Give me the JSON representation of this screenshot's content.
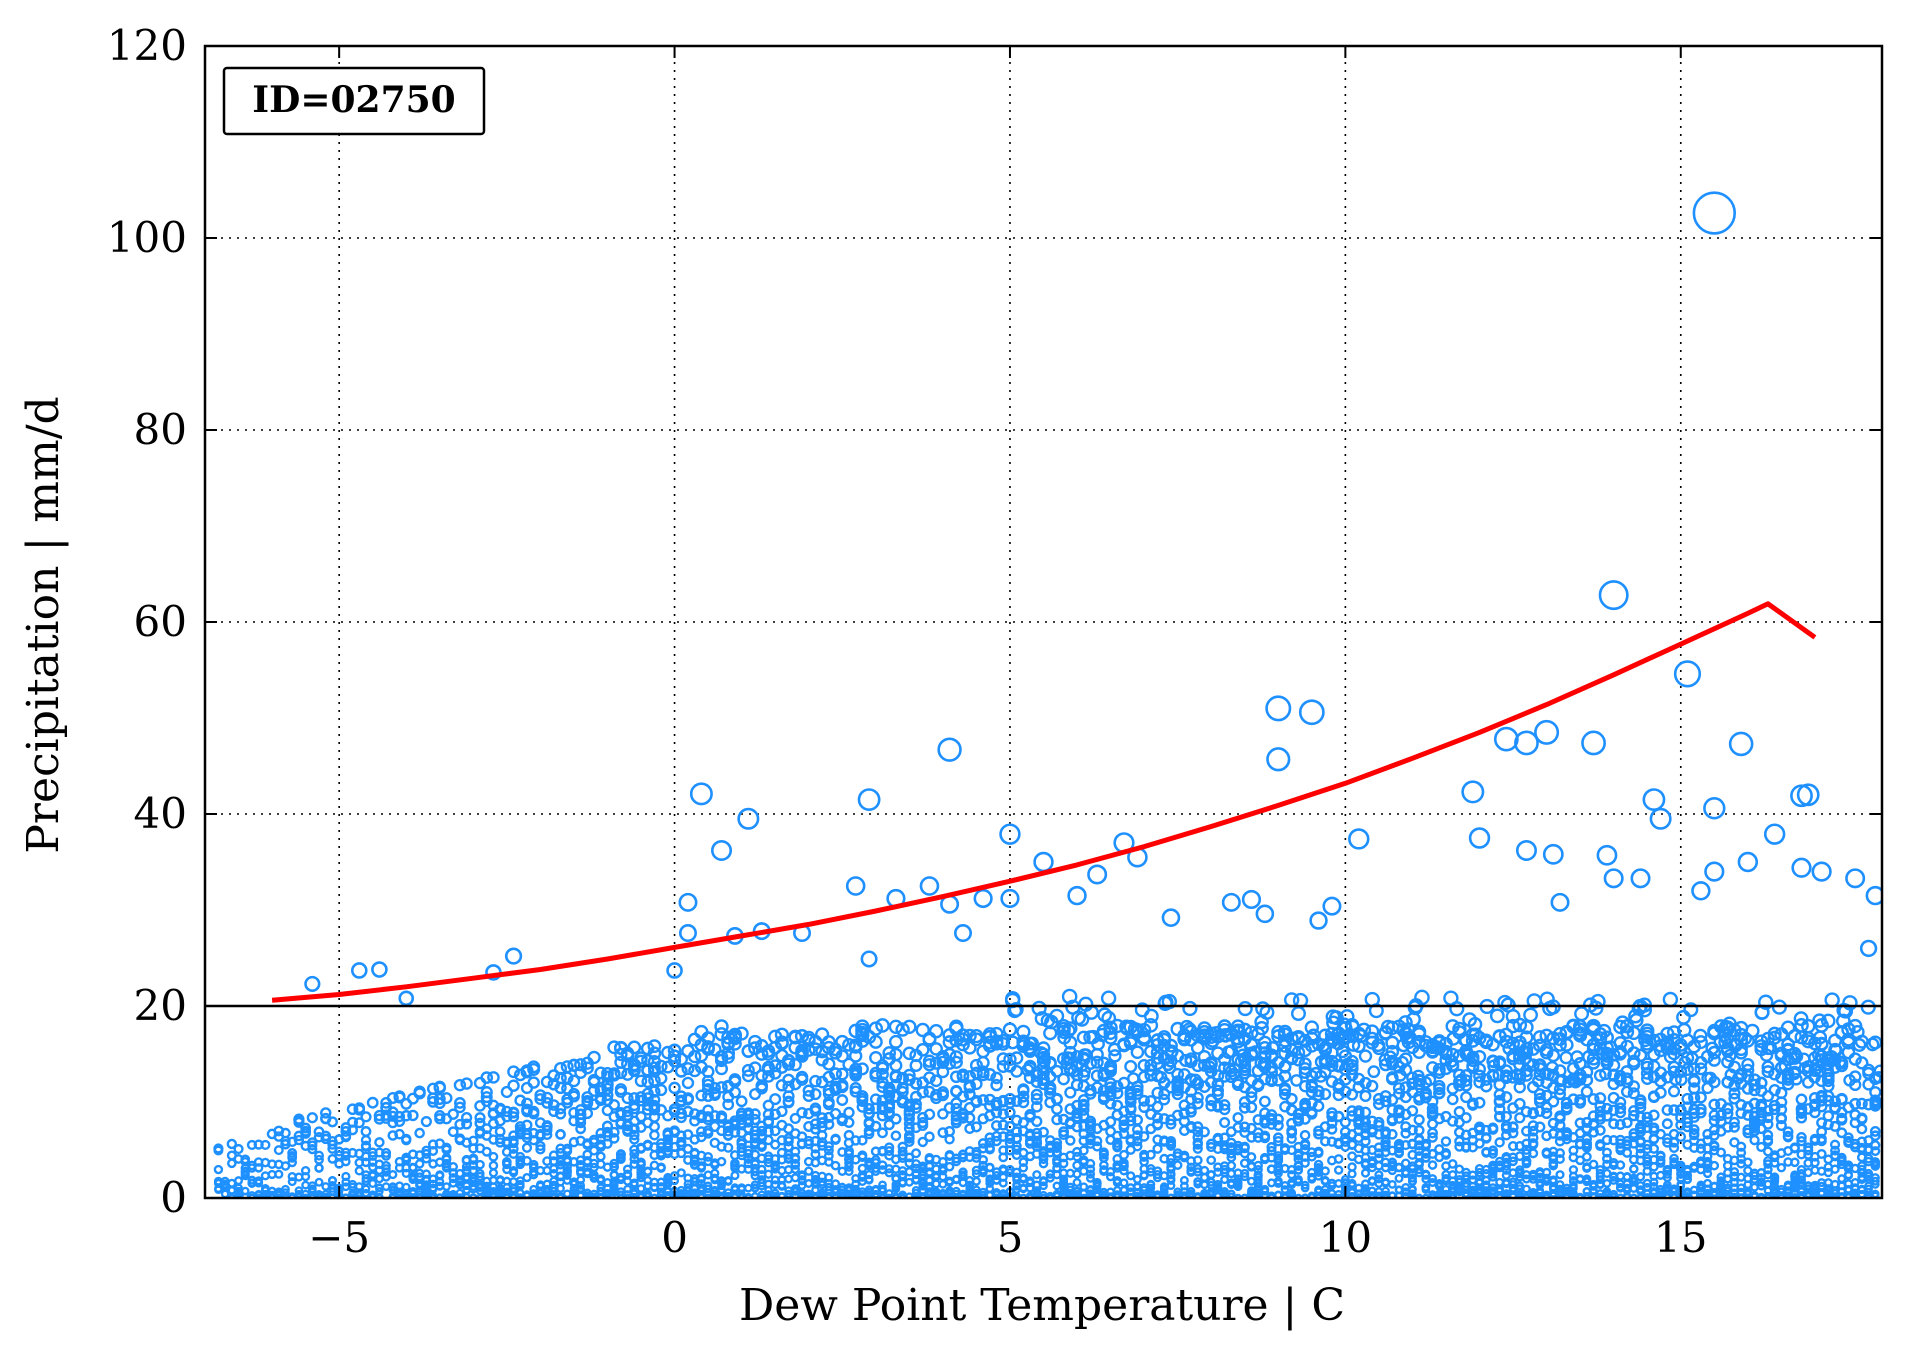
{
  "chart_data": {
    "type": "scatter",
    "title": "",
    "xlabel": "Dew Point Temperature | C",
    "ylabel": "Precipitation | mm/d",
    "xlim": [
      -7,
      18
    ],
    "ylim": [
      0,
      120
    ],
    "x_ticks": [
      -5,
      0,
      5,
      10,
      15
    ],
    "x_tick_labels": [
      "−5",
      "0",
      "5",
      "10",
      "15"
    ],
    "y_ticks": [
      0,
      20,
      40,
      60,
      80,
      100,
      120
    ],
    "y_tick_labels": [
      "0",
      "20",
      "40",
      "60",
      "80",
      "100",
      "120"
    ],
    "grid": true,
    "grid_style": "dotted",
    "annotation": "ID=02750",
    "annotation_placement": "top-left",
    "threshold_line": {
      "y": 20,
      "color": "#000000"
    },
    "marker_color": "#1e90ff",
    "curve_color": "#ff0000",
    "series": [
      {
        "kind": "scatter",
        "marker": "open-circle",
        "note_visible_points": "Only the distinct high-value points are listed; a dense band of thousands of points fills 0-20 mm/d across the x range.",
        "points": [
          [
            -5.4,
            22.3
          ],
          [
            -4.7,
            23.7
          ],
          [
            -4.4,
            23.8
          ],
          [
            -4.0,
            20.8
          ],
          [
            -2.7,
            23.5
          ],
          [
            -2.4,
            25.2
          ],
          [
            0.0,
            23.7
          ],
          [
            0.2,
            30.8
          ],
          [
            0.2,
            27.6
          ],
          [
            0.4,
            42.1
          ],
          [
            0.7,
            36.2
          ],
          [
            1.1,
            39.5
          ],
          [
            0.9,
            27.3
          ],
          [
            1.3,
            27.8
          ],
          [
            1.9,
            27.6
          ],
          [
            2.7,
            32.5
          ],
          [
            2.9,
            41.5
          ],
          [
            2.9,
            24.9
          ],
          [
            3.3,
            31.2
          ],
          [
            3.8,
            32.5
          ],
          [
            4.1,
            46.7
          ],
          [
            4.1,
            30.6
          ],
          [
            4.3,
            27.6
          ],
          [
            4.6,
            31.2
          ],
          [
            5.0,
            37.9
          ],
          [
            5.0,
            31.2
          ],
          [
            5.5,
            35.0
          ],
          [
            6.0,
            31.5
          ],
          [
            6.3,
            33.7
          ],
          [
            6.7,
            37.0
          ],
          [
            6.9,
            35.5
          ],
          [
            7.4,
            29.2
          ],
          [
            8.3,
            30.8
          ],
          [
            8.6,
            31.1
          ],
          [
            8.8,
            29.6
          ],
          [
            9.0,
            51.0
          ],
          [
            9.0,
            45.7
          ],
          [
            9.5,
            50.6
          ],
          [
            9.6,
            28.9
          ],
          [
            9.8,
            30.4
          ],
          [
            10.2,
            37.4
          ],
          [
            11.9,
            42.3
          ],
          [
            12.0,
            37.5
          ],
          [
            12.4,
            47.8
          ],
          [
            12.7,
            47.4
          ],
          [
            13.0,
            48.5
          ],
          [
            13.1,
            35.8
          ],
          [
            12.7,
            36.2
          ],
          [
            13.2,
            30.8
          ],
          [
            13.7,
            47.4
          ],
          [
            14.0,
            62.8
          ],
          [
            13.9,
            35.7
          ],
          [
            14.0,
            33.3
          ],
          [
            14.4,
            33.3
          ],
          [
            14.6,
            41.5
          ],
          [
            14.7,
            39.5
          ],
          [
            15.1,
            54.6
          ],
          [
            15.5,
            102.6
          ],
          [
            15.5,
            40.6
          ],
          [
            15.9,
            47.3
          ],
          [
            16.0,
            35.0
          ],
          [
            16.4,
            37.9
          ],
          [
            16.8,
            41.9
          ],
          [
            16.9,
            42.0
          ],
          [
            16.8,
            34.4
          ],
          [
            17.1,
            34.0
          ],
          [
            17.6,
            33.3
          ],
          [
            17.9,
            31.5
          ],
          [
            17.8,
            26.0
          ],
          [
            15.3,
            32.0
          ],
          [
            15.5,
            34.0
          ]
        ]
      },
      {
        "kind": "curve",
        "points": [
          [
            -6.0,
            20.6
          ],
          [
            -5.0,
            21.2
          ],
          [
            -4.0,
            22.0
          ],
          [
            -3.0,
            22.9
          ],
          [
            -2.0,
            23.8
          ],
          [
            -1.0,
            24.9
          ],
          [
            0.0,
            26.1
          ],
          [
            1.0,
            27.3
          ],
          [
            2.0,
            28.5
          ],
          [
            3.0,
            29.9
          ],
          [
            4.0,
            31.4
          ],
          [
            5.0,
            33.0
          ],
          [
            6.0,
            34.7
          ],
          [
            7.0,
            36.6
          ],
          [
            8.0,
            38.7
          ],
          [
            9.0,
            40.9
          ],
          [
            10.0,
            43.2
          ],
          [
            11.0,
            45.8
          ],
          [
            12.0,
            48.5
          ],
          [
            13.0,
            51.4
          ],
          [
            14.0,
            54.5
          ],
          [
            15.0,
            57.7
          ],
          [
            16.0,
            60.9
          ],
          [
            16.3,
            61.9
          ],
          [
            17.0,
            58.4
          ]
        ]
      }
    ]
  }
}
